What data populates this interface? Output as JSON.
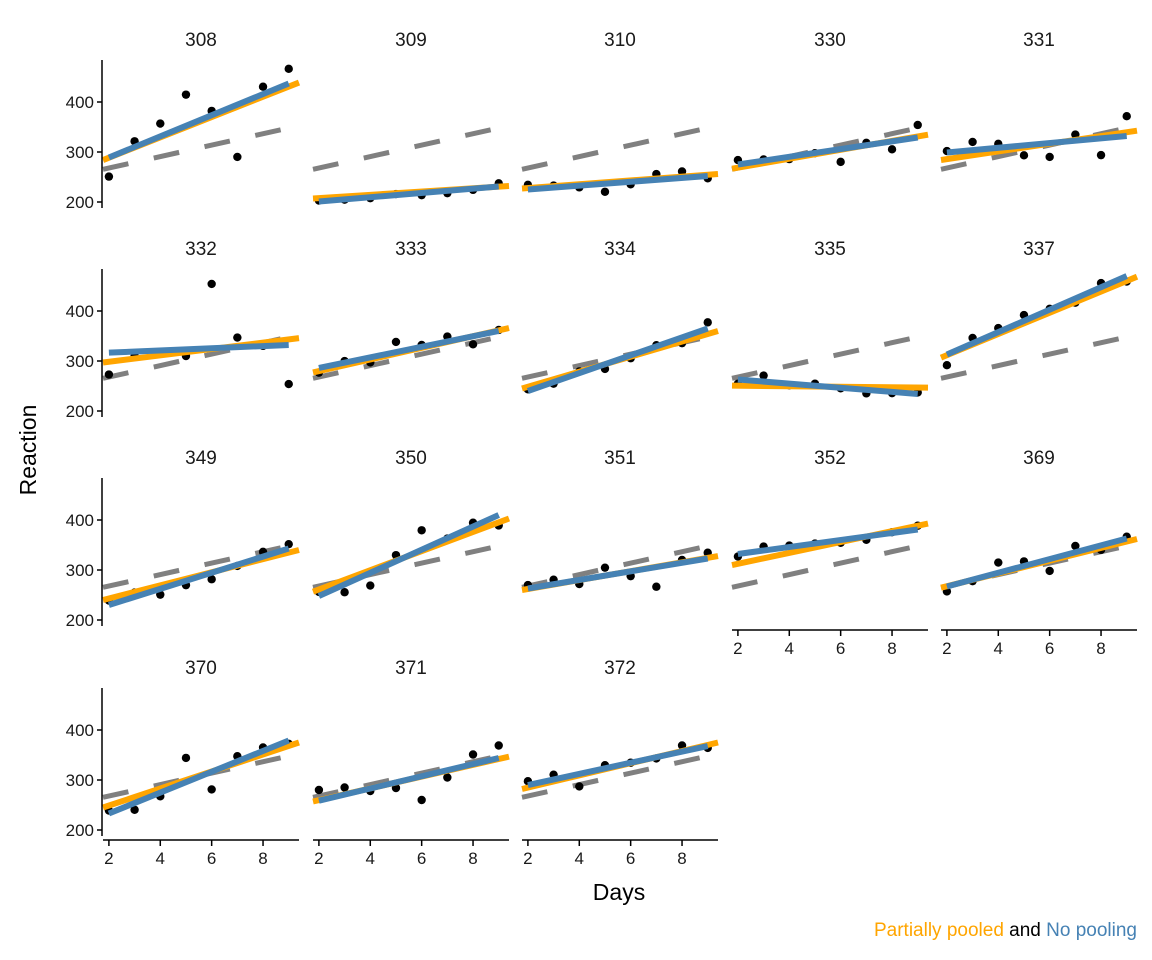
{
  "chart_data": {
    "type": "line",
    "xlabel": "Days",
    "ylabel": "Reaction",
    "xlim": [
      1.77,
      9.4
    ],
    "ylim": [
      188,
      484
    ],
    "xticks": [
      2,
      4,
      6,
      8
    ],
    "yticks": [
      200,
      300,
      400
    ],
    "grid": false,
    "colors": {
      "partial": "#FFA500",
      "nopool": "#4682B4",
      "population": "#808080",
      "points": "#000000"
    },
    "population": {
      "intercept": 245.1,
      "slope": 11.44
    },
    "facets": [
      {
        "title": "308",
        "days": [
          2,
          3,
          4,
          5,
          6,
          7,
          8,
          9
        ],
        "reaction": [
          250.8,
          321.44,
          356.85,
          414.69,
          382.2,
          290.15,
          430.59,
          466.35
        ],
        "partial": {
          "intercept": 248.0,
          "slope": 20.31
        },
        "nopool": {
          "intercept": 246.7,
          "slope": 21.14
        }
      },
      {
        "title": "309",
        "days": [
          2,
          3,
          4,
          5,
          6,
          7,
          8,
          9
        ],
        "reaction": [
          202.98,
          204.71,
          207.72,
          215.96,
          213.63,
          217.73,
          224.3,
          237.31
        ],
        "partial": {
          "intercept": 201.2,
          "slope": 3.28
        },
        "nopool": {
          "intercept": 192.4,
          "slope": 4.29
        }
      },
      {
        "title": "310",
        "days": [
          2,
          3,
          4,
          5,
          6,
          7,
          8,
          9
        ],
        "reaction": [
          234.32,
          232.84,
          229.31,
          220.46,
          235.42,
          255.75,
          261.01,
          247.52
        ],
        "partial": {
          "intercept": 220.3,
          "slope": 3.8
        },
        "nopool": {
          "intercept": 217.3,
          "slope": 3.86
        }
      },
      {
        "title": "330",
        "days": [
          2,
          3,
          4,
          5,
          6,
          7,
          8,
          9
        ],
        "reaction": [
          283.86,
          285.13,
          285.8,
          297.59,
          280.24,
          318.26,
          305.35,
          354.05
        ],
        "partial": {
          "intercept": 250.9,
          "slope": 8.91
        },
        "nopool": {
          "intercept": 259.6,
          "slope": 7.71
        }
      },
      {
        "title": "331",
        "days": [
          2,
          3,
          4,
          5,
          6,
          7,
          8,
          9
        ],
        "reaction": [
          301.82,
          320.12,
          316.28,
          293.32,
          290.08,
          334.82,
          293.75,
          371.58
        ],
        "partial": {
          "intercept": 270.4,
          "slope": 7.69
        },
        "nopool": {
          "intercept": 289.6,
          "slope": 4.71
        }
      },
      {
        "title": "332",
        "days": [
          2,
          3,
          4,
          5,
          6,
          7,
          8,
          9
        ],
        "reaction": [
          272.96,
          309.77,
          317.46,
          309.99,
          454.16,
          346.83,
          330.3,
          253.86
        ],
        "partial": {
          "intercept": 285.7,
          "slope": 6.38
        },
        "nopool": {
          "intercept": 312.3,
          "slope": 2.19
        }
      },
      {
        "title": "333",
        "days": [
          2,
          3,
          4,
          5,
          6,
          7,
          8,
          9
        ],
        "reaction": [
          276.77,
          299.81,
          297.17,
          338.17,
          332.02,
          348.84,
          333.36,
          362.04
        ],
        "partial": {
          "intercept": 256.4,
          "slope": 11.66
        },
        "nopool": {
          "intercept": 264.9,
          "slope": 10.57
        }
      },
      {
        "title": "334",
        "days": [
          2,
          3,
          4,
          5,
          6,
          7,
          8,
          9
        ],
        "reaction": [
          243.36,
          254.67,
          279.02,
          284.19,
          305.53,
          331.5,
          335.75,
          377.3
        ],
        "partial": {
          "intercept": 218.3,
          "slope": 15.07
        },
        "nopool": {
          "intercept": 204.3,
          "slope": 17.86
        }
      },
      {
        "title": "335",
        "days": [
          2,
          3,
          4,
          5,
          6,
          7,
          8,
          9
        ],
        "reaction": [
          254.49,
          270.8,
          251.45,
          254.64,
          245.45,
          235.31,
          235.75,
          237.25
        ],
        "partial": {
          "intercept": 251.6,
          "slope": -0.52
        },
        "nopool": {
          "intercept": 271.3,
          "slope": -4.14
        }
      },
      {
        "title": "337",
        "days": [
          2,
          3,
          4,
          5,
          6,
          7,
          8,
          9
        ],
        "reaction": [
          291.61,
          346.12,
          365.73,
          391.84,
          404.26,
          416.69,
          455.86,
          458.92
        ],
        "partial": {
          "intercept": 269.1,
          "slope": 21.23
        },
        "nopool": {
          "intercept": 268.1,
          "slope": 22.43
        }
      },
      {
        "title": "349",
        "days": [
          2,
          3,
          4,
          5,
          6,
          7,
          8,
          9
        ],
        "reaction": [
          238.92,
          254.92,
          250.71,
          269.77,
          281.56,
          308.1,
          336.28,
          351.64
        ],
        "partial": {
          "intercept": 216.8,
          "slope": 13.11
        },
        "nopool": {
          "intercept": 197.7,
          "slope": 16.14
        }
      },
      {
        "title": "350",
        "days": [
          2,
          3,
          4,
          5,
          6,
          7,
          8,
          9
        ],
        "reaction": [
          256.2,
          255.53,
          268.92,
          329.72,
          379.44,
          362.91,
          394.49,
          389.05
        ],
        "partial": {
          "intercept": 222.8,
          "slope": 19.17
        },
        "nopool": {
          "intercept": 201.7,
          "slope": 23.14
        }
      },
      {
        "title": "351",
        "days": [
          2,
          3,
          4,
          5,
          6,
          7,
          8,
          9
        ],
        "reaction": [
          269.89,
          280.58,
          271.83,
          304.63,
          287.75,
          266.56,
          320.05,
          334.48
        ],
        "partial": {
          "intercept": 244.2,
          "slope": 8.91
        },
        "nopool": {
          "intercept": 245.9,
          "slope": 8.57
        }
      },
      {
        "title": "352",
        "days": [
          2,
          3,
          4,
          5,
          6,
          7,
          8,
          9
        ],
        "reaction": [
          326.88,
          346.86,
          348.74,
          352.83,
          354.43,
          360.43,
          375.65,
          388.54
        ],
        "partial": {
          "intercept": 290.7,
          "slope": 10.88
        },
        "nopool": {
          "intercept": 318.0,
          "slope": 7.0
        }
      },
      {
        "title": "369",
        "days": [
          2,
          3,
          4,
          5,
          6,
          7,
          8,
          9
        ],
        "reaction": [
          257.24,
          277.66,
          314.82,
          317.21,
          298.14,
          348.13,
          340.28,
          366.51
        ],
        "partial": {
          "intercept": 242.1,
          "slope": 12.75
        },
        "nopool": {
          "intercept": 239.6,
          "slope": 13.71
        }
      },
      {
        "title": "370",
        "days": [
          2,
          3,
          4,
          5,
          6,
          7,
          8,
          9
        ],
        "reaction": [
          238.9,
          240.47,
          267.52,
          344.19,
          281.15,
          347.59,
          365.16,
          372.23
        ],
        "partial": {
          "intercept": 214.8,
          "slope": 17.04
        },
        "nopool": {
          "intercept": 191.3,
          "slope": 20.86
        }
      },
      {
        "title": "371",
        "days": [
          2,
          3,
          4,
          5,
          6,
          7,
          8,
          9
        ],
        "reaction": [
          280,
          285,
          278,
          284,
          260,
          305,
          351,
          369
        ],
        "partial": {
          "intercept": 236.2,
          "slope": 11.76
        },
        "nopool": {
          "intercept": 234.3,
          "slope": 12.19
        }
      },
      {
        "title": "372",
        "days": [
          2,
          3,
          4,
          5,
          6,
          7,
          8,
          9
        ],
        "reaction": [
          297.6,
          310.63,
          287.17,
          329.61,
          334.48,
          343.22,
          369.14,
          364.12
        ],
        "partial": {
          "intercept": 260.4,
          "slope": 12.19
        },
        "nopool": {
          "intercept": 267.7,
          "slope": 11.14
        }
      }
    ]
  },
  "caption": {
    "partial_label": "Partially pooled",
    "and_label": "and",
    "nopool_label": "No pooling"
  }
}
